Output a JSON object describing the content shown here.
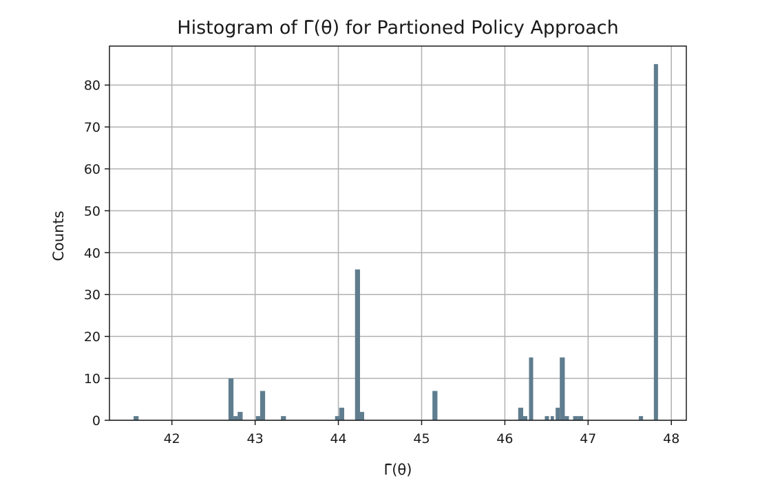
{
  "chart_data": {
    "type": "bar",
    "title": "Histogram of Γ̄(θ) for Partioned Policy Approach",
    "xlabel": "Γ̄(θ)",
    "ylabel": "Counts",
    "xlim": [
      41.25,
      48.18
    ],
    "ylim": [
      0,
      89.3
    ],
    "xticks": [
      "42",
      "43",
      "44",
      "45",
      "46",
      "47",
      "48"
    ],
    "yticks": [
      "0",
      "10",
      "20",
      "30",
      "40",
      "50",
      "60",
      "70",
      "80"
    ],
    "xtick_values": [
      42,
      43,
      44,
      45,
      46,
      47,
      48
    ],
    "ytick_values": [
      0,
      10,
      20,
      30,
      40,
      50,
      60,
      70,
      80
    ],
    "grid": true,
    "bar_color": "#5f7d8e",
    "bins": [
      {
        "left": 41.54,
        "right": 41.6,
        "count": 1
      },
      {
        "left": 42.68,
        "right": 42.74,
        "count": 10
      },
      {
        "left": 42.74,
        "right": 42.79,
        "count": 1
      },
      {
        "left": 42.79,
        "right": 42.85,
        "count": 2
      },
      {
        "left": 43.01,
        "right": 43.06,
        "count": 1
      },
      {
        "left": 43.06,
        "right": 43.12,
        "count": 7
      },
      {
        "left": 43.31,
        "right": 43.37,
        "count": 1
      },
      {
        "left": 43.96,
        "right": 44.01,
        "count": 1
      },
      {
        "left": 44.01,
        "right": 44.07,
        "count": 3
      },
      {
        "left": 44.2,
        "right": 44.26,
        "count": 36
      },
      {
        "left": 44.26,
        "right": 44.31,
        "count": 2
      },
      {
        "left": 45.13,
        "right": 45.19,
        "count": 7
      },
      {
        "left": 46.16,
        "right": 46.22,
        "count": 3
      },
      {
        "left": 46.22,
        "right": 46.27,
        "count": 1
      },
      {
        "left": 46.29,
        "right": 46.34,
        "count": 15
      },
      {
        "left": 46.48,
        "right": 46.53,
        "count": 1
      },
      {
        "left": 46.55,
        "right": 46.59,
        "count": 1
      },
      {
        "left": 46.61,
        "right": 46.66,
        "count": 3
      },
      {
        "left": 46.66,
        "right": 46.72,
        "count": 15
      },
      {
        "left": 46.72,
        "right": 46.77,
        "count": 1
      },
      {
        "left": 46.82,
        "right": 46.88,
        "count": 1
      },
      {
        "left": 46.88,
        "right": 46.94,
        "count": 1
      },
      {
        "left": 47.61,
        "right": 47.66,
        "count": 1
      },
      {
        "left": 47.79,
        "right": 47.84,
        "count": 85
      }
    ]
  }
}
